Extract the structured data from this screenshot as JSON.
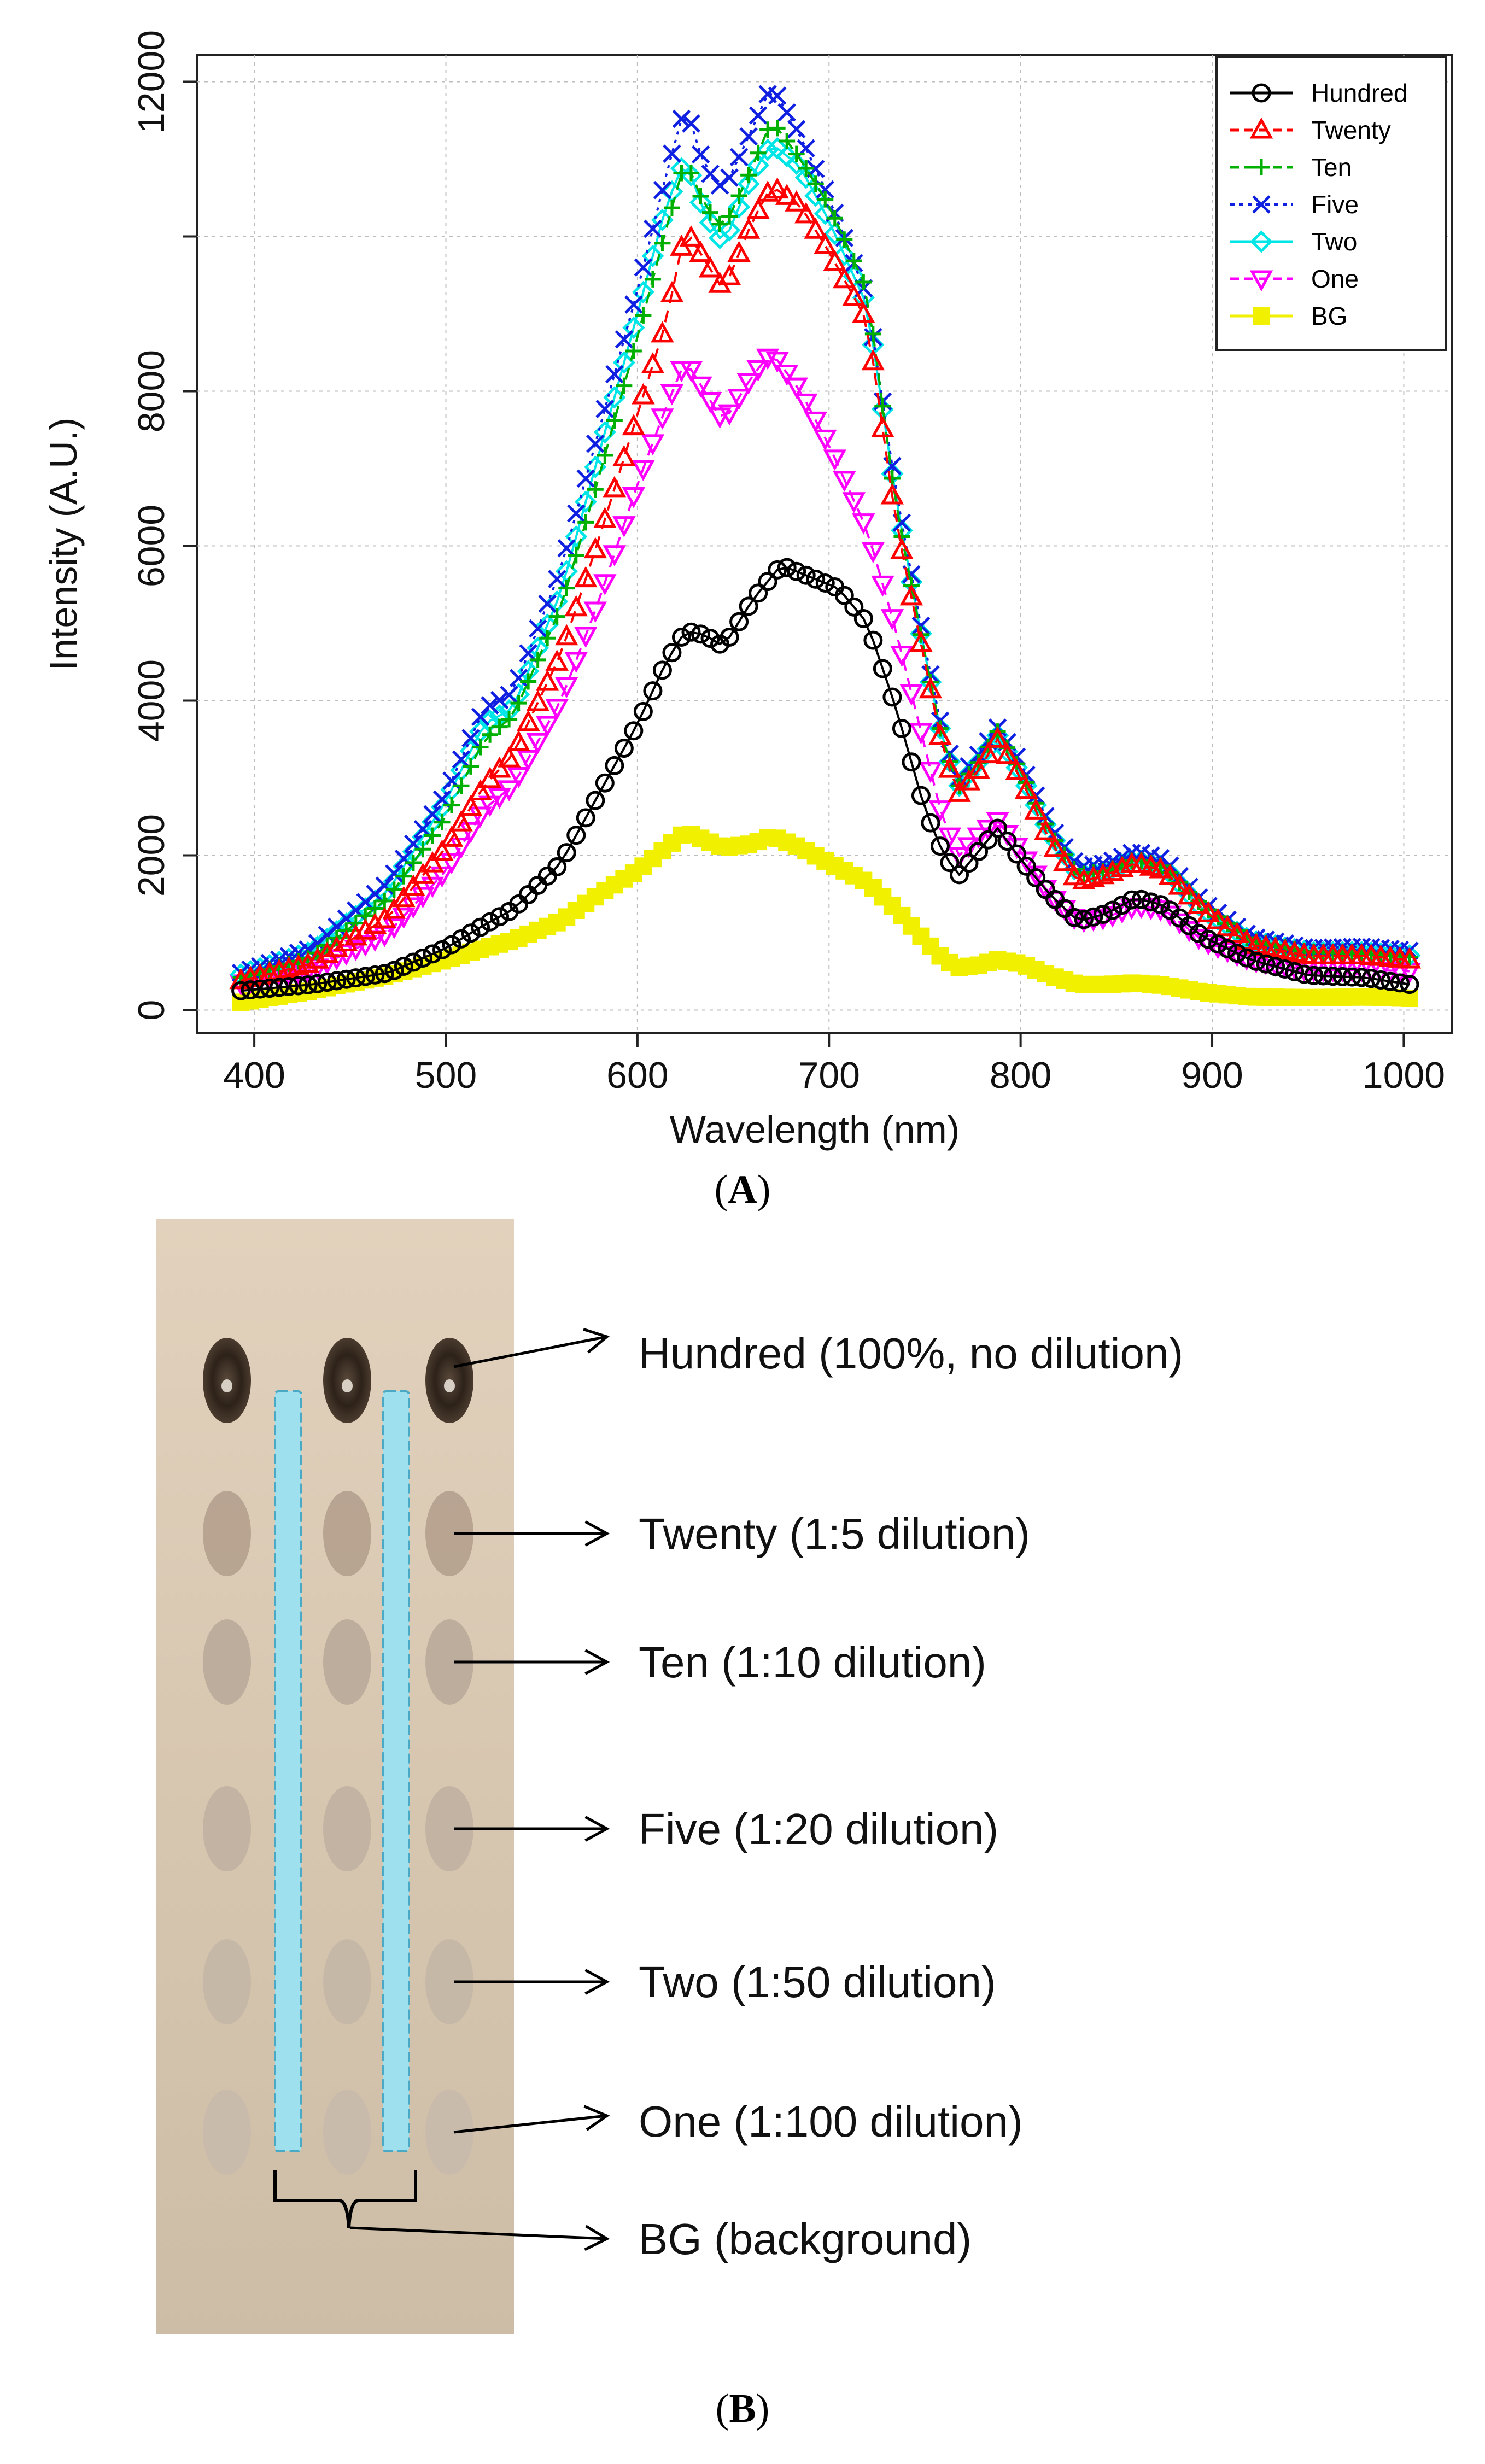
{
  "chart_data": {
    "type": "scatter",
    "xlabel": "Wavelength (nm)",
    "ylabel": "Intensity (A.U.)",
    "xlim": [
      370,
      1025
    ],
    "ylim": [
      -300,
      12350
    ],
    "x_ticks": [
      400,
      500,
      600,
      700,
      800,
      900,
      1000
    ],
    "y_ticks": [
      0,
      2000,
      4000,
      6000,
      8000,
      10000,
      12000
    ],
    "y_tick_labels": [
      "0",
      "2000",
      "4000",
      "6000",
      "8000",
      "",
      "12000"
    ],
    "grid": true,
    "legend_position": "top-right",
    "x_range": [
      393,
      1006
    ],
    "x_step": 5,
    "series": [
      {
        "name": "Hundred",
        "color": "#000000",
        "marker": "circle",
        "line": "solid",
        "anchors": [
          [
            393,
            250
          ],
          [
            430,
            330
          ],
          [
            470,
            480
          ],
          [
            500,
            800
          ],
          [
            520,
            1100
          ],
          [
            535,
            1300
          ],
          [
            560,
            1900
          ],
          [
            580,
            2800
          ],
          [
            600,
            3700
          ],
          [
            615,
            4500
          ],
          [
            625,
            4900
          ],
          [
            635,
            4850
          ],
          [
            645,
            4700
          ],
          [
            660,
            5300
          ],
          [
            675,
            5750
          ],
          [
            690,
            5600
          ],
          [
            705,
            5450
          ],
          [
            720,
            5000
          ],
          [
            735,
            3900
          ],
          [
            750,
            2600
          ],
          [
            760,
            2000
          ],
          [
            768,
            1750
          ],
          [
            778,
            2050
          ],
          [
            788,
            2350
          ],
          [
            800,
            1950
          ],
          [
            815,
            1500
          ],
          [
            830,
            1150
          ],
          [
            845,
            1250
          ],
          [
            860,
            1450
          ],
          [
            875,
            1350
          ],
          [
            895,
            950
          ],
          [
            920,
            650
          ],
          [
            950,
            450
          ],
          [
            980,
            420
          ],
          [
            1006,
            320
          ]
        ]
      },
      {
        "name": "Twenty",
        "color": "#ff0000",
        "marker": "triangle-up",
        "line": "dashed",
        "anchors": [
          [
            393,
            380
          ],
          [
            430,
            600
          ],
          [
            470,
            1200
          ],
          [
            500,
            2100
          ],
          [
            520,
            2900
          ],
          [
            535,
            3300
          ],
          [
            560,
            4600
          ],
          [
            580,
            6100
          ],
          [
            600,
            7700
          ],
          [
            615,
            8900
          ],
          [
            625,
            10100
          ],
          [
            635,
            9700
          ],
          [
            645,
            9300
          ],
          [
            660,
            10200
          ],
          [
            670,
            10650
          ],
          [
            685,
            10400
          ],
          [
            700,
            9800
          ],
          [
            720,
            8900
          ],
          [
            735,
            6300
          ],
          [
            750,
            4500
          ],
          [
            760,
            3300
          ],
          [
            768,
            2800
          ],
          [
            778,
            3100
          ],
          [
            788,
            3500
          ],
          [
            800,
            3000
          ],
          [
            815,
            2200
          ],
          [
            830,
            1650
          ],
          [
            845,
            1750
          ],
          [
            860,
            1900
          ],
          [
            875,
            1800
          ],
          [
            895,
            1300
          ],
          [
            920,
            850
          ],
          [
            950,
            700
          ],
          [
            980,
            700
          ],
          [
            1006,
            640
          ]
        ]
      },
      {
        "name": "Ten",
        "color": "#00b000",
        "marker": "plus",
        "line": "dashed",
        "anchors": [
          [
            393,
            420
          ],
          [
            430,
            680
          ],
          [
            470,
            1450
          ],
          [
            500,
            2500
          ],
          [
            520,
            3500
          ],
          [
            535,
            3800
          ],
          [
            560,
            5200
          ],
          [
            580,
            6900
          ],
          [
            600,
            8700
          ],
          [
            615,
            10100
          ],
          [
            625,
            11000
          ],
          [
            635,
            10400
          ],
          [
            645,
            10100
          ],
          [
            660,
            10900
          ],
          [
            670,
            11500
          ],
          [
            685,
            11000
          ],
          [
            700,
            10400
          ],
          [
            720,
            9300
          ],
          [
            735,
            6500
          ],
          [
            750,
            4600
          ],
          [
            760,
            3400
          ],
          [
            768,
            2900
          ],
          [
            778,
            3200
          ],
          [
            788,
            3600
          ],
          [
            800,
            3100
          ],
          [
            815,
            2300
          ],
          [
            830,
            1750
          ],
          [
            845,
            1800
          ],
          [
            860,
            1950
          ],
          [
            875,
            1850
          ],
          [
            895,
            1350
          ],
          [
            920,
            900
          ],
          [
            950,
            750
          ],
          [
            980,
            730
          ],
          [
            1006,
            680
          ]
        ]
      },
      {
        "name": "Five",
        "color": "#1020e0",
        "marker": "cross",
        "line": "dotted",
        "anchors": [
          [
            393,
            480
          ],
          [
            430,
            800
          ],
          [
            470,
            1650
          ],
          [
            500,
            2800
          ],
          [
            520,
            3900
          ],
          [
            535,
            4100
          ],
          [
            560,
            5700
          ],
          [
            580,
            7500
          ],
          [
            600,
            9300
          ],
          [
            615,
            10800
          ],
          [
            625,
            11700
          ],
          [
            635,
            10900
          ],
          [
            645,
            10600
          ],
          [
            660,
            11400
          ],
          [
            670,
            11950
          ],
          [
            685,
            11300
          ],
          [
            700,
            10500
          ],
          [
            720,
            9200
          ],
          [
            735,
            6700
          ],
          [
            750,
            4700
          ],
          [
            760,
            3500
          ],
          [
            768,
            3000
          ],
          [
            778,
            3300
          ],
          [
            788,
            3650
          ],
          [
            800,
            3200
          ],
          [
            815,
            2400
          ],
          [
            830,
            1850
          ],
          [
            845,
            1900
          ],
          [
            860,
            2050
          ],
          [
            875,
            1950
          ],
          [
            895,
            1400
          ],
          [
            920,
            950
          ],
          [
            950,
            800
          ],
          [
            980,
            820
          ],
          [
            1006,
            760
          ]
        ]
      },
      {
        "name": "Two",
        "color": "#00e5e5",
        "marker": "diamond",
        "line": "solid",
        "anchors": [
          [
            393,
            460
          ],
          [
            430,
            760
          ],
          [
            470,
            1550
          ],
          [
            500,
            2700
          ],
          [
            520,
            3700
          ],
          [
            535,
            3900
          ],
          [
            560,
            5400
          ],
          [
            580,
            7200
          ],
          [
            600,
            9000
          ],
          [
            615,
            10400
          ],
          [
            625,
            11000
          ],
          [
            635,
            10300
          ],
          [
            645,
            9900
          ],
          [
            660,
            10800
          ],
          [
            670,
            11200
          ],
          [
            685,
            10900
          ],
          [
            700,
            10200
          ],
          [
            720,
            9100
          ],
          [
            735,
            6600
          ],
          [
            750,
            4600
          ],
          [
            760,
            3400
          ],
          [
            768,
            2900
          ],
          [
            778,
            3200
          ],
          [
            788,
            3550
          ],
          [
            800,
            3050
          ],
          [
            815,
            2300
          ],
          [
            830,
            1750
          ],
          [
            845,
            1800
          ],
          [
            860,
            1950
          ],
          [
            875,
            1850
          ],
          [
            895,
            1300
          ],
          [
            920,
            900
          ],
          [
            950,
            750
          ],
          [
            980,
            750
          ],
          [
            1006,
            700
          ]
        ]
      },
      {
        "name": "One",
        "color": "#ff00ff",
        "marker": "triangle-down",
        "line": "dashed",
        "anchors": [
          [
            393,
            350
          ],
          [
            430,
            520
          ],
          [
            470,
            1000
          ],
          [
            500,
            1800
          ],
          [
            520,
            2600
          ],
          [
            535,
            2900
          ],
          [
            560,
            4000
          ],
          [
            580,
            5300
          ],
          [
            600,
            6800
          ],
          [
            615,
            7800
          ],
          [
            625,
            8400
          ],
          [
            635,
            8000
          ],
          [
            645,
            7600
          ],
          [
            660,
            8200
          ],
          [
            670,
            8500
          ],
          [
            685,
            8000
          ],
          [
            700,
            7300
          ],
          [
            720,
            6200
          ],
          [
            735,
            4900
          ],
          [
            750,
            3400
          ],
          [
            760,
            2400
          ],
          [
            768,
            2000
          ],
          [
            778,
            2250
          ],
          [
            788,
            2450
          ],
          [
            800,
            2050
          ],
          [
            815,
            1500
          ],
          [
            830,
            1150
          ],
          [
            845,
            1200
          ],
          [
            860,
            1350
          ],
          [
            875,
            1300
          ],
          [
            895,
            900
          ],
          [
            920,
            650
          ],
          [
            950,
            520
          ],
          [
            980,
            520
          ],
          [
            1006,
            500
          ]
        ]
      },
      {
        "name": "BG",
        "color": "#f0f000",
        "marker": "square",
        "line": "solid",
        "anchors": [
          [
            393,
            100
          ],
          [
            430,
            250
          ],
          [
            470,
            450
          ],
          [
            500,
            650
          ],
          [
            520,
            800
          ],
          [
            535,
            900
          ],
          [
            560,
            1150
          ],
          [
            580,
            1500
          ],
          [
            600,
            1800
          ],
          [
            615,
            2100
          ],
          [
            625,
            2300
          ],
          [
            635,
            2200
          ],
          [
            645,
            2100
          ],
          [
            660,
            2150
          ],
          [
            670,
            2250
          ],
          [
            685,
            2100
          ],
          [
            700,
            1900
          ],
          [
            720,
            1650
          ],
          [
            735,
            1300
          ],
          [
            750,
            900
          ],
          [
            760,
            650
          ],
          [
            768,
            550
          ],
          [
            778,
            580
          ],
          [
            788,
            650
          ],
          [
            800,
            600
          ],
          [
            815,
            450
          ],
          [
            830,
            330
          ],
          [
            845,
            330
          ],
          [
            860,
            350
          ],
          [
            875,
            320
          ],
          [
            895,
            230
          ],
          [
            920,
            170
          ],
          [
            950,
            160
          ],
          [
            980,
            170
          ],
          [
            1006,
            150
          ]
        ]
      }
    ]
  },
  "figure": {
    "panel_a_label": "A",
    "panel_b_label": "B",
    "photo_labels": [
      "Hundred (100%, no dilution)",
      "Twenty (1:5 dilution)",
      "Ten (1:10 dilution)",
      "Five (1:20 dilution)",
      "Two (1:50 dilution)",
      "One (1:100 dilution)",
      "BG (background)"
    ]
  }
}
